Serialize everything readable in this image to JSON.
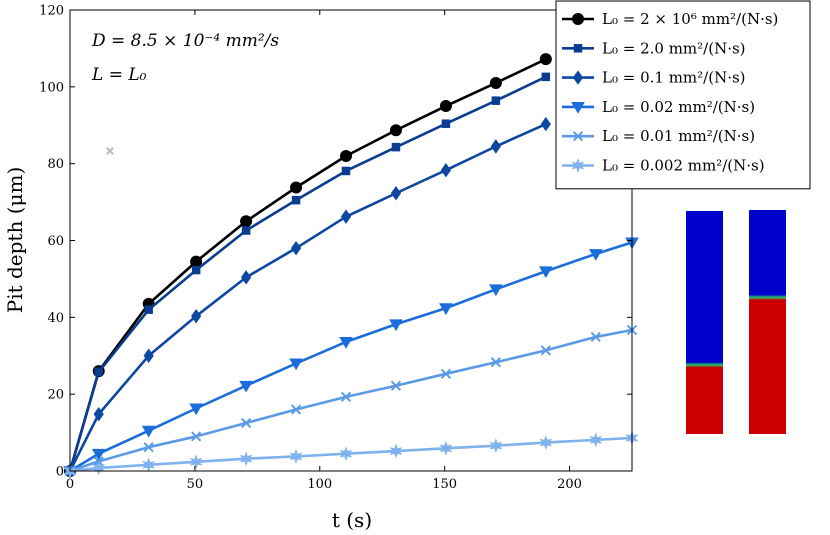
{
  "chart_data": {
    "type": "line",
    "xlabel": "t (s)",
    "ylabel": "Pit depth (μm)",
    "xlim": [
      0,
      225
    ],
    "ylim": [
      0,
      120
    ],
    "xticks": [
      0,
      50,
      100,
      150,
      200
    ],
    "yticks": [
      0,
      20,
      40,
      60,
      80,
      100,
      120
    ],
    "grid": false,
    "legend_position": "top-right",
    "annotations": [
      "D = 8.5 × 10⁻⁴ mm²/s",
      "L = L₀"
    ],
    "series": [
      {
        "name": "L₀ = 2 × 10⁶ mm²/(N·s)",
        "color": "#000000",
        "marker": "circle",
        "x": [
          0,
          11.5,
          31.5,
          50.5,
          70.5,
          90.5,
          110.5,
          130.5,
          150.5,
          170.5,
          190.5
        ],
        "y": [
          0,
          26.0,
          43.5,
          54.5,
          65.0,
          73.8,
          82.0,
          88.7,
          95.0,
          101.0,
          107.2
        ]
      },
      {
        "name": "L₀ = 2.0 mm²/(N·s)",
        "color": "#0a3d8f",
        "marker": "square",
        "x": [
          0,
          11.5,
          31.5,
          50.5,
          70.5,
          90.5,
          110.5,
          130.5,
          150.5,
          170.5,
          190.5
        ],
        "y": [
          0,
          25.8,
          42.0,
          52.3,
          62.6,
          70.5,
          78.1,
          84.3,
          90.4,
          96.4,
          102.6
        ]
      },
      {
        "name": "L₀ = 0.1 mm²/(N·s)",
        "color": "#0d47a1",
        "marker": "diamond",
        "x": [
          0,
          11.5,
          31.5,
          50.5,
          70.5,
          90.5,
          110.5,
          130.5,
          150.5,
          170.5,
          190.5
        ],
        "y": [
          0,
          14.8,
          30.0,
          40.3,
          50.4,
          58.0,
          66.2,
          72.3,
          78.3,
          84.5,
          90.3
        ]
      },
      {
        "name": "L₀ = 0.02 mm²/(N·s)",
        "color": "#1a6ddb",
        "marker": "triangle-down",
        "x": [
          0,
          11.5,
          31.5,
          50.5,
          70.5,
          90.5,
          110.5,
          130.5,
          150.5,
          170.5,
          190.5,
          210.5,
          225
        ],
        "y": [
          0,
          4.5,
          10.5,
          16.3,
          22.2,
          28.0,
          33.6,
          38.2,
          42.4,
          47.3,
          52.0,
          56.5,
          59.5
        ]
      },
      {
        "name": "L₀ = 0.01 mm²/(N·s)",
        "color": "#5b9be6",
        "marker": "x",
        "x": [
          0,
          11.5,
          31.5,
          50.5,
          70.5,
          90.5,
          110.5,
          130.5,
          150.5,
          170.5,
          190.5,
          210.5,
          225
        ],
        "y": [
          0,
          2.5,
          6.2,
          9.0,
          12.5,
          16.0,
          19.3,
          22.2,
          25.3,
          28.3,
          31.4,
          34.9,
          36.7
        ]
      },
      {
        "name": "L₀ = 0.002 mm²/(N·s)",
        "color": "#7fb2ee",
        "marker": "star",
        "x": [
          0,
          11.5,
          31.5,
          50.5,
          70.5,
          90.5,
          110.5,
          130.5,
          150.5,
          170.5,
          190.5,
          210.5,
          225
        ],
        "y": [
          0,
          0.8,
          1.6,
          2.4,
          3.2,
          3.8,
          4.5,
          5.2,
          5.9,
          6.6,
          7.4,
          8.1,
          8.6
        ]
      }
    ],
    "stray_marks": [
      {
        "marker": "x",
        "x": 16,
        "y": 83.3,
        "color": "#bbbbbb"
      }
    ]
  },
  "inset": {
    "colors": {
      "top": "#0000cc",
      "bottom": "#cc0000",
      "interface": "#22cc66"
    },
    "columns": [
      {
        "interface_fraction": 0.31
      },
      {
        "interface_fraction": 0.61
      }
    ]
  }
}
